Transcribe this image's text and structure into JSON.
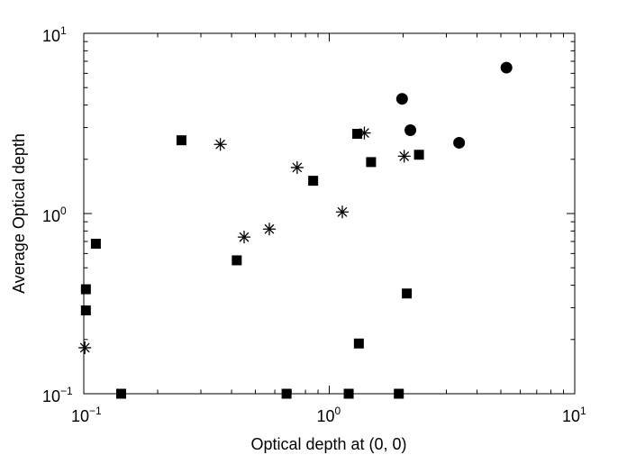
{
  "chart_data": {
    "type": "scatter",
    "title": "",
    "xlabel": "Optical depth at (0, 0)",
    "ylabel": "Average Optical depth",
    "xscale": "log",
    "yscale": "log",
    "xlim": [
      0.1,
      10
    ],
    "ylim": [
      0.1,
      10
    ],
    "grid": false,
    "x_ticks": [
      {
        "base": "10",
        "exp": "−1"
      },
      {
        "base": "10",
        "exp": "0"
      },
      {
        "base": "10",
        "exp": "1"
      }
    ],
    "y_ticks": [
      {
        "base": "10",
        "exp": "−1"
      },
      {
        "base": "10",
        "exp": "0"
      },
      {
        "base": "10",
        "exp": "1"
      }
    ],
    "series": [
      {
        "marker": "square",
        "color": "#000000",
        "points": [
          {
            "x": 0.102,
            "y": 0.38
          },
          {
            "x": 0.102,
            "y": 0.29
          },
          {
            "x": 0.112,
            "y": 0.68
          },
          {
            "x": 0.142,
            "y": 0.1
          },
          {
            "x": 0.25,
            "y": 2.55
          },
          {
            "x": 0.42,
            "y": 0.55
          },
          {
            "x": 0.67,
            "y": 0.1
          },
          {
            "x": 0.86,
            "y": 1.52
          },
          {
            "x": 1.2,
            "y": 0.1
          },
          {
            "x": 1.3,
            "y": 2.77
          },
          {
            "x": 1.32,
            "y": 0.19
          },
          {
            "x": 1.48,
            "y": 1.93
          },
          {
            "x": 1.92,
            "y": 0.1
          },
          {
            "x": 2.07,
            "y": 0.36
          },
          {
            "x": 2.32,
            "y": 2.12
          }
        ]
      },
      {
        "marker": "asterisk",
        "color": "#000000",
        "points": [
          {
            "x": 0.101,
            "y": 0.18
          },
          {
            "x": 0.36,
            "y": 2.42
          },
          {
            "x": 0.45,
            "y": 0.74
          },
          {
            "x": 0.57,
            "y": 0.82
          },
          {
            "x": 0.74,
            "y": 1.8
          },
          {
            "x": 1.13,
            "y": 1.02
          },
          {
            "x": 1.39,
            "y": 2.8
          },
          {
            "x": 2.02,
            "y": 2.08
          }
        ]
      },
      {
        "marker": "circle",
        "color": "#000000",
        "points": [
          {
            "x": 1.98,
            "y": 4.33
          },
          {
            "x": 2.14,
            "y": 2.9
          },
          {
            "x": 3.38,
            "y": 2.47
          },
          {
            "x": 5.27,
            "y": 6.45
          }
        ]
      }
    ]
  }
}
